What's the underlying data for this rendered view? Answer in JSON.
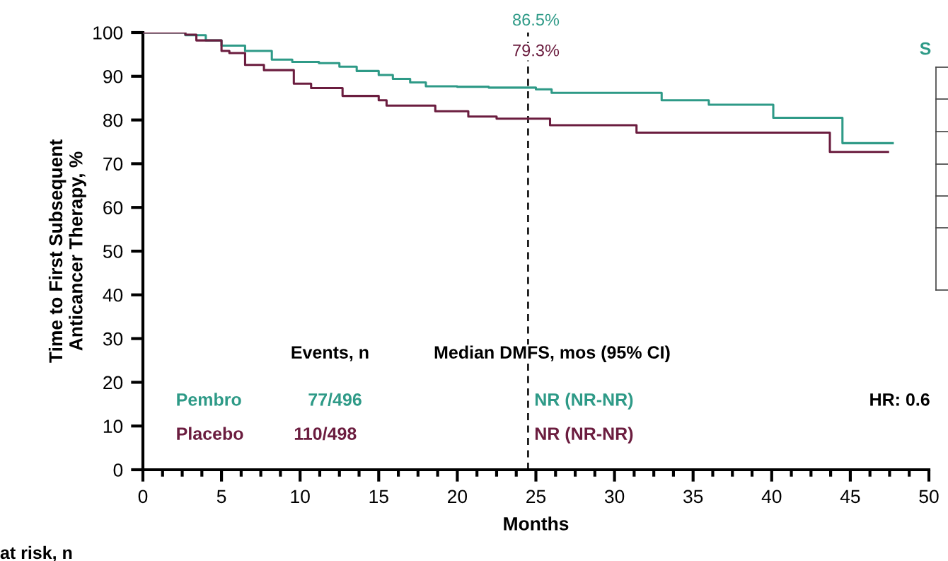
{
  "chart_data": {
    "type": "step",
    "xlabel": "Months",
    "ylabel": "Time to First Subsequent\nAnticancer Therapy, %",
    "xlim": [
      0,
      50
    ],
    "xticks": [
      0,
      5,
      10,
      15,
      20,
      25,
      30,
      35,
      40,
      45,
      50
    ],
    "ylim": [
      0,
      100
    ],
    "yticks": [
      0,
      10,
      20,
      30,
      40,
      50,
      60,
      70,
      80,
      90,
      100
    ],
    "grid": false,
    "legend": false,
    "marker": "none",
    "line_style": "solid",
    "series": [
      {
        "name": "Pembro",
        "color": "#2e9a87",
        "x": [
          0,
          2.7,
          4,
          5,
          6.5,
          8.2,
          9.5,
          11.2,
          12.5,
          13.6,
          15,
          15.9,
          17,
          18,
          20,
          22,
          25,
          26,
          33,
          36,
          40.1,
          44.5,
          47.7
        ],
        "values": [
          100,
          99.4,
          98.2,
          97,
          95.8,
          93.8,
          93.3,
          93,
          92.2,
          91.2,
          90.3,
          89.4,
          88.6,
          87.7,
          87.6,
          87.4,
          87.0,
          86.2,
          84.5,
          83.5,
          80.5,
          74.7,
          74.7
        ]
      },
      {
        "name": "Placebo",
        "color": "#6b1d3f",
        "x": [
          0,
          2.7,
          3.4,
          5,
          5.5,
          6.5,
          7.7,
          9.6,
          10.7,
          12.7,
          15,
          15.5,
          18.6,
          20.7,
          22.5,
          25.9,
          31.4,
          43.7,
          47.4
        ],
        "values": [
          100,
          99.5,
          98.2,
          95.8,
          95.3,
          92.6,
          91.4,
          88.3,
          87.3,
          85.5,
          84.5,
          83.3,
          82.0,
          80.8,
          80.3,
          78.8,
          77.1,
          72.7,
          72.7
        ]
      }
    ],
    "ref_lines": [
      {
        "axis": "x",
        "value": 24.5,
        "line_style": "dashed",
        "color": "#000000"
      }
    ],
    "annotations": [
      "86.5%",
      "79.3%",
      "Events, n",
      "Median DMFS, mos (95% CI)",
      "77/496",
      "NR (NR-NR)",
      "110/498",
      "NR (NR-NR)",
      "HR: 0.6",
      "S",
      "at risk, n"
    ]
  }
}
